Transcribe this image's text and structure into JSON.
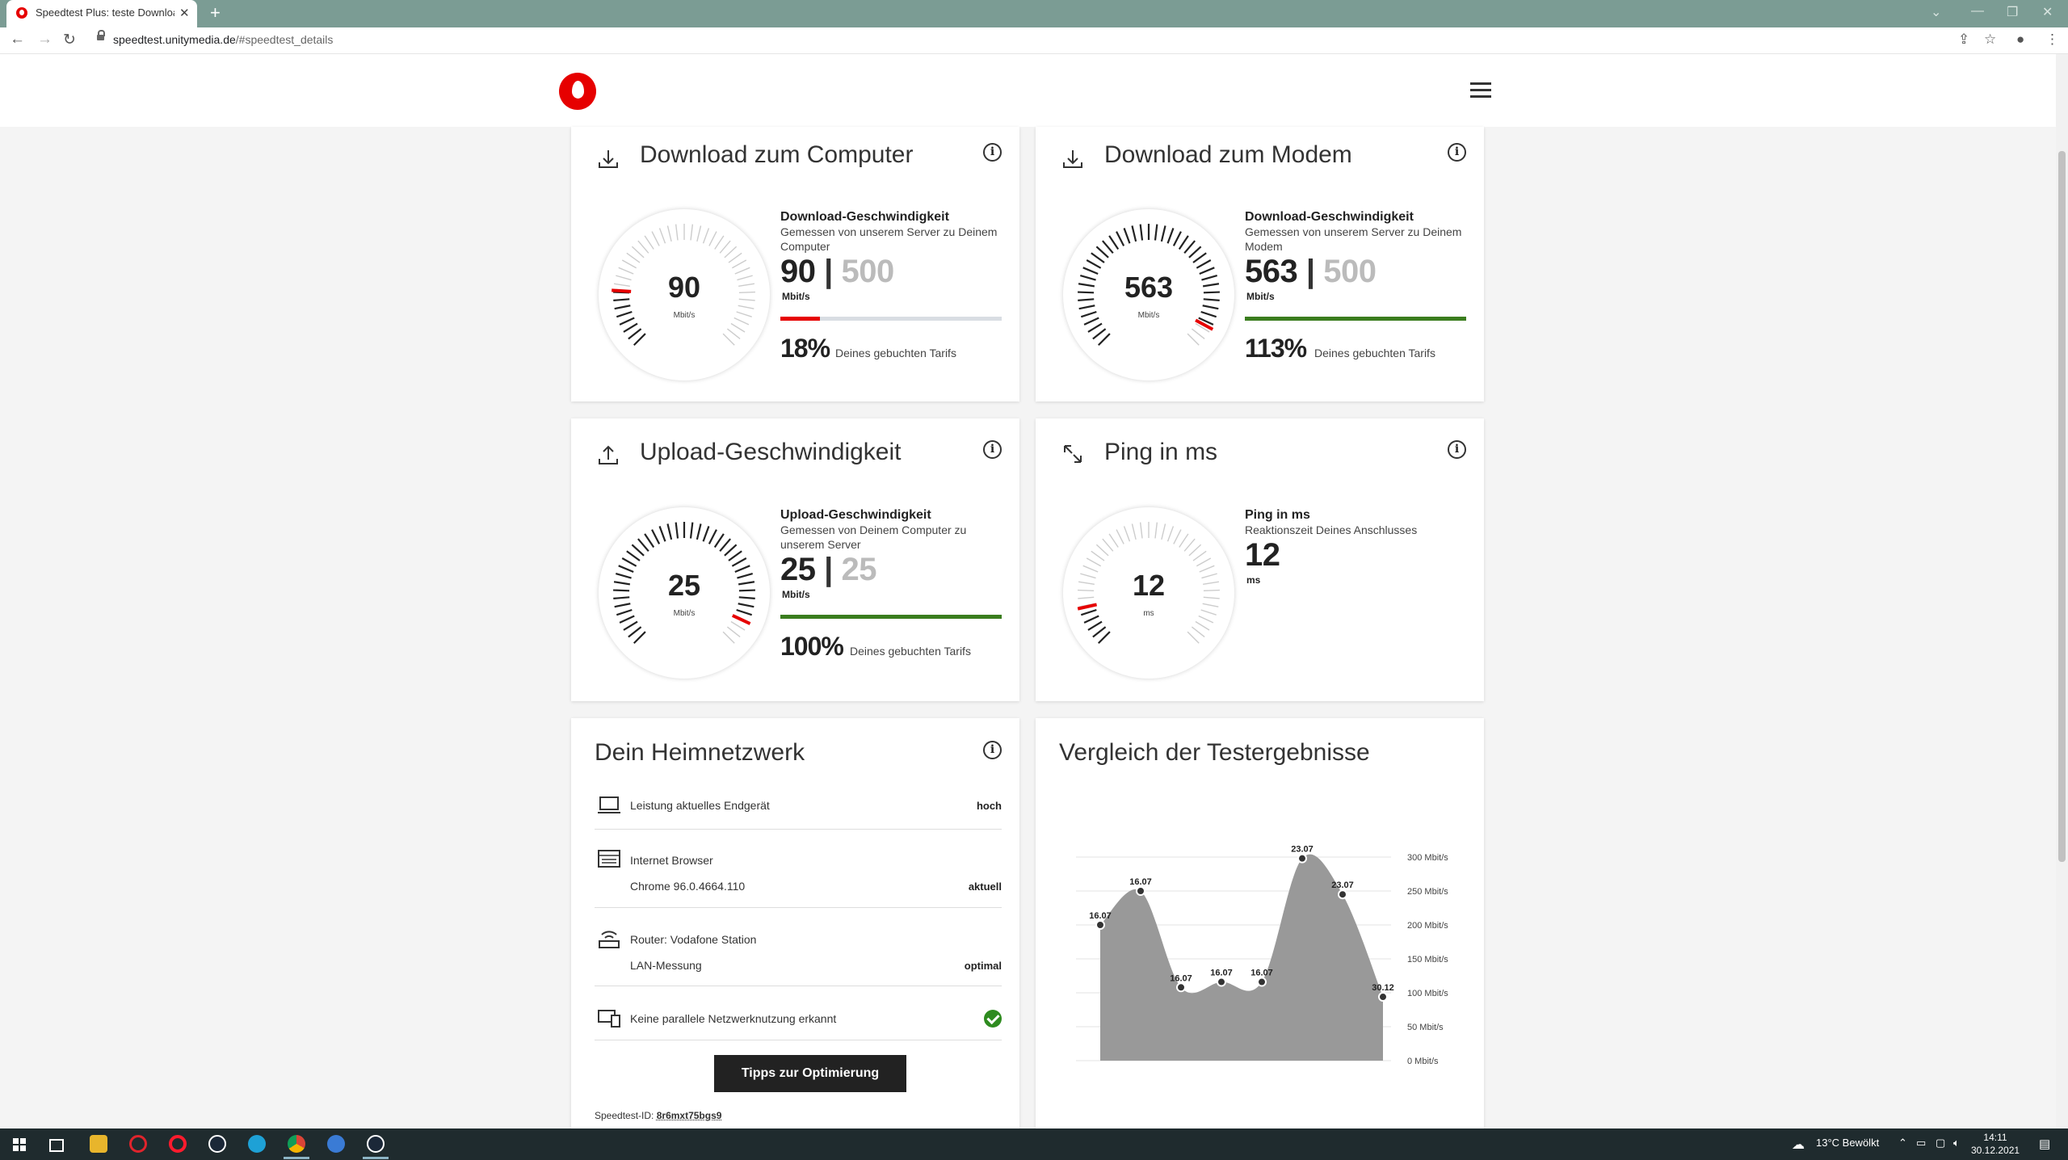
{
  "browser": {
    "tab_title": "Speedtest Plus: teste Download",
    "url_host": "speedtest.unitymedia.de",
    "url_path": "/#speedtest_details"
  },
  "cards": {
    "download_computer": {
      "title": "Download zum Computer",
      "gauge_value": "90",
      "gauge_unit": "Mbit/s",
      "heading": "Download-Geschwindigkeit",
      "subtitle": "Gemessen von unserem Server zu Deinem Computer",
      "measured": "90",
      "separator": "|",
      "target": "500",
      "unit": "Mbit/s",
      "bar_fraction": 0.18,
      "percent": "18%",
      "percent_label": "Deines gebuchten Tarifs",
      "bar_color": "#e60000"
    },
    "download_modem": {
      "title": "Download zum Modem",
      "gauge_value": "563",
      "gauge_unit": "Mbit/s",
      "heading": "Download-Geschwindigkeit",
      "subtitle": "Gemessen von unserem Server zu Deinem Modem",
      "measured": "563",
      "separator": "|",
      "target": "500",
      "unit": "Mbit/s",
      "bar_fraction": 1.0,
      "percent": "113%",
      "percent_label": "Deines gebuchten Tarifs",
      "bar_color": "#3a7d1e"
    },
    "upload": {
      "title": "Upload-Geschwindigkeit",
      "gauge_value": "25",
      "gauge_unit": "Mbit/s",
      "heading": "Upload-Geschwindigkeit",
      "subtitle": "Gemessen von Deinem Computer zu unserem Server",
      "measured": "25",
      "separator": "|",
      "target": "25",
      "unit": "Mbit/s",
      "bar_fraction": 1.0,
      "percent": "100%",
      "percent_label": "Deines gebuchten Tarifs",
      "bar_color": "#3a7d1e"
    },
    "ping": {
      "title": "Ping in ms",
      "gauge_value": "12",
      "gauge_unit": "ms",
      "heading": "Ping in ms",
      "subtitle": "Reaktionszeit Deines Anschlusses",
      "measured": "12",
      "unit": "ms"
    }
  },
  "network": {
    "title": "Dein Heimnetzwerk",
    "rows": [
      {
        "label": "Leistung aktuelles Endgerät",
        "status": "hoch"
      },
      {
        "label": "Internet Browser",
        "detail": "Chrome 96.0.4664.110",
        "status": "aktuell"
      },
      {
        "label": "Router: Vodafone Station",
        "detail": "LAN-Messung",
        "status": "optimal"
      },
      {
        "label": "Keine parallele Netzwerknutzung erkannt"
      }
    ],
    "button": "Tipps zur Optimierung",
    "speedtest_id_label": "Speedtest-ID:",
    "speedtest_id": "8r6mxt75bgs9"
  },
  "comparison": {
    "title": "Vergleich der Testergebnisse"
  },
  "chart_data": {
    "type": "area",
    "x": [
      "16.07",
      "16.07",
      "16.07",
      "16.07",
      "16.07",
      "23.07",
      "23.07",
      "30.12"
    ],
    "values": [
      200,
      250,
      108,
      116,
      116,
      298,
      245,
      94
    ],
    "ylim": [
      0,
      300
    ],
    "yticks": [
      "0 Mbit/s",
      "50 Mbit/s",
      "100 Mbit/s",
      "150 Mbit/s",
      "200 Mbit/s",
      "250 Mbit/s",
      "300 Mbit/s"
    ],
    "fill_color": "#999999",
    "grid": true
  },
  "taskbar": {
    "weather": "13°C  Bewölkt",
    "time": "14:11",
    "date": "30.12.2021"
  }
}
